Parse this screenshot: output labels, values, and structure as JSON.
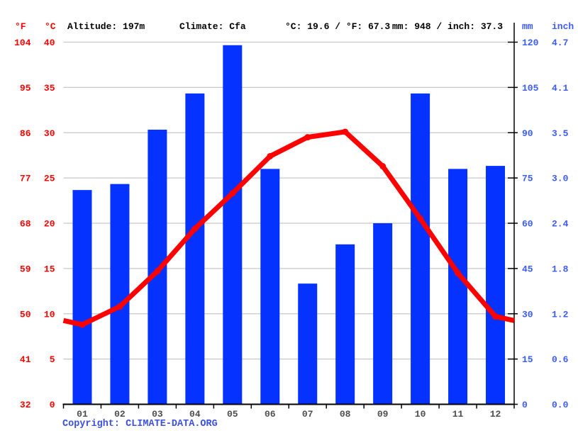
{
  "header": {
    "fahrenheit_unit": "°F",
    "celsius_unit": "°C",
    "altitude": "Altitude: 197m",
    "climate": "Climate: Cfa",
    "temperature_summary": "°C: 19.6 / °F: 67.3",
    "precipitation_summary": "mm: 948 / inch: 37.3",
    "mm_unit": "mm",
    "inch_unit": "inch"
  },
  "chart_data": {
    "type": "bar+line",
    "categories": [
      "01",
      "02",
      "03",
      "04",
      "05",
      "06",
      "07",
      "08",
      "09",
      "10",
      "11",
      "12"
    ],
    "series": [
      {
        "name": "Precipitation",
        "type": "bar",
        "unit": "mm",
        "values": [
          71,
          73,
          91,
          103,
          119,
          78,
          40,
          53,
          60,
          103,
          78,
          79
        ]
      },
      {
        "name": "Average temperature",
        "type": "line",
        "unit": "°C",
        "values": [
          8.8,
          10.8,
          14.7,
          19.4,
          23.3,
          27.4,
          29.5,
          30.1,
          26.3,
          20.5,
          14.5,
          9.7
        ]
      }
    ],
    "axis_ticks": {
      "fahrenheit": [
        "104",
        "95",
        "86",
        "77",
        "68",
        "59",
        "50",
        "41",
        "32"
      ],
      "celsius": [
        "40",
        "35",
        "30",
        "25",
        "20",
        "15",
        "10",
        "5",
        "0"
      ],
      "mm": [
        "120",
        "105",
        "90",
        "75",
        "60",
        "45",
        "30",
        "15",
        "0"
      ],
      "inch": [
        "4.7",
        "4.1",
        "3.5",
        "3.0",
        "2.4",
        "1.8",
        "1.2",
        "0.6",
        "0.0"
      ]
    },
    "y_left_axis": {
      "label": "°C",
      "range": [
        0,
        40
      ]
    },
    "y_right_axis": {
      "label": "mm",
      "range": [
        0,
        120
      ]
    },
    "grid": true,
    "legend_position": "none",
    "annual_mean_temp_c": 19.6,
    "annual_precip_mm": 948
  },
  "colors": {
    "bar_blue": "#0532ff",
    "line_red": "#ff0000",
    "left_labels_red": "#ff0000",
    "right_labels_blue": "#3b5bff",
    "gridline_gray": "#c8c8c8",
    "axis_black": "#000000",
    "month_label_gray": "#4d4d4d",
    "copyright_blue": "#3c50e0"
  },
  "footer": {
    "copyright": "Copyright: CLIMATE-DATA.ORG"
  }
}
